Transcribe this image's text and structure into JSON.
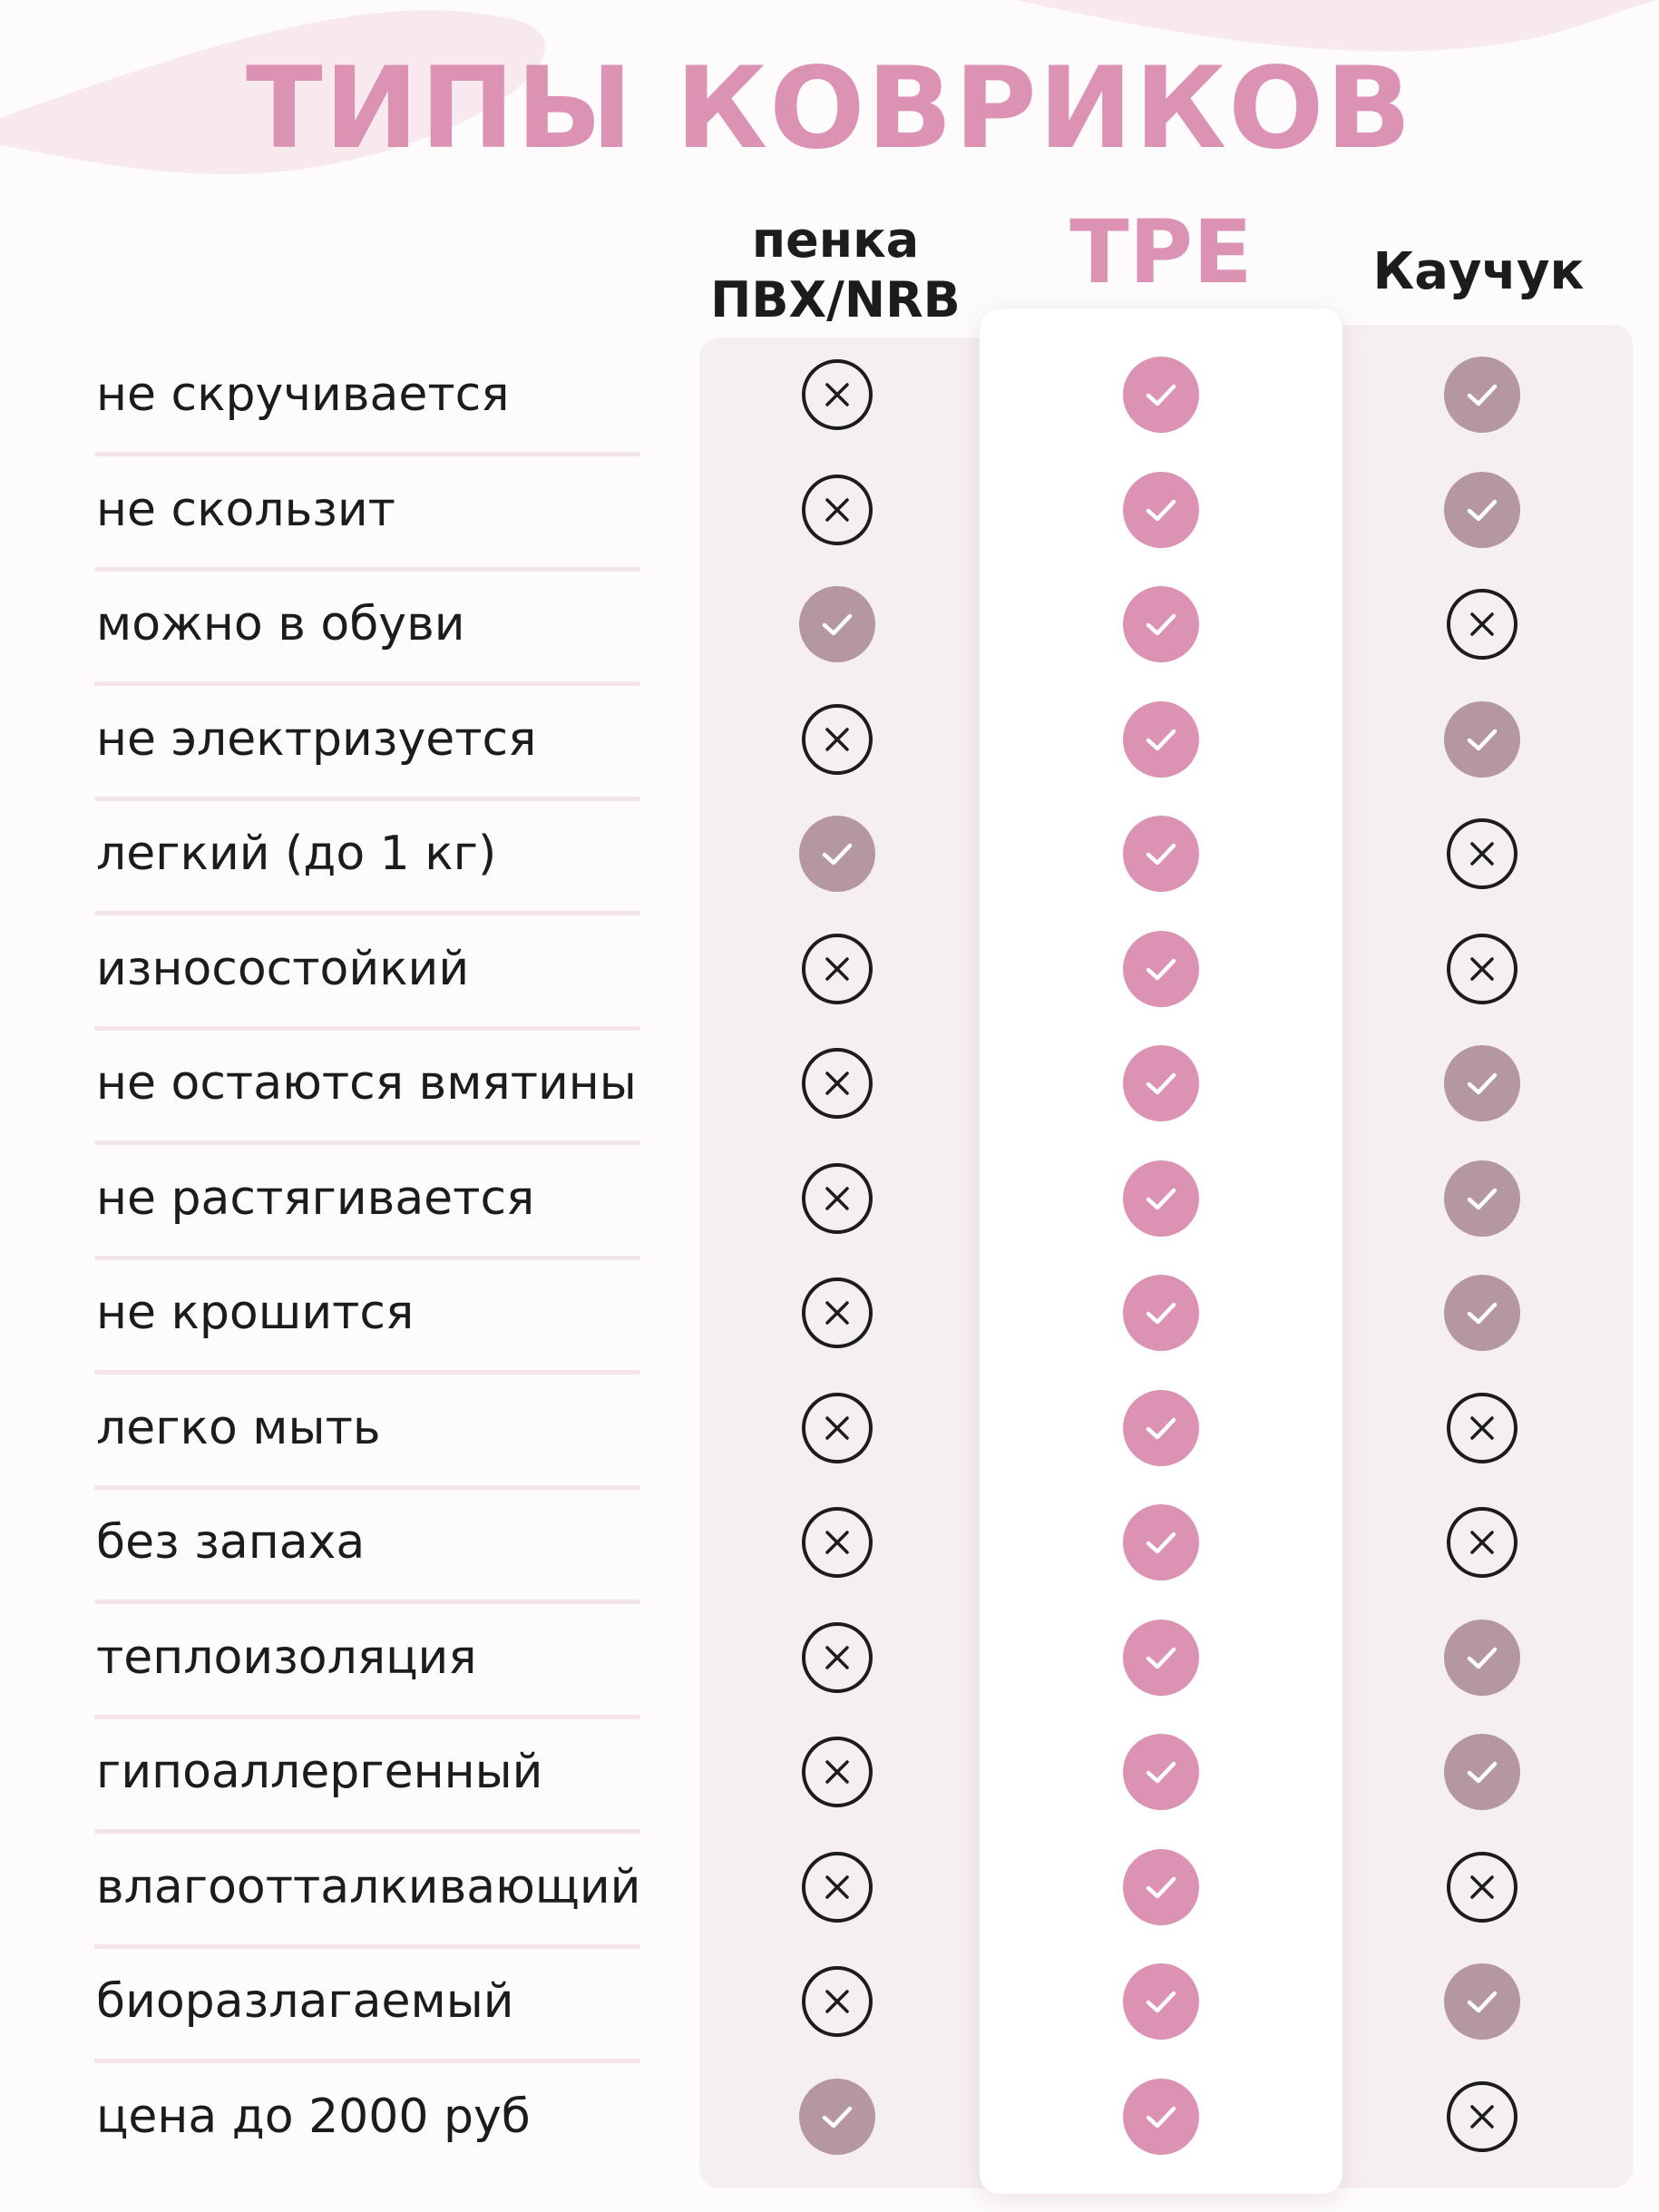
{
  "title": "ТИПЫ КОВРИКОВ",
  "columns": [
    {
      "key": "pvc",
      "label_line1": "пенка",
      "label_line2": "ПВХ/NRB"
    },
    {
      "key": "tpe",
      "label": "TPE"
    },
    {
      "key": "rubber",
      "label": "Каучук"
    }
  ],
  "colors": {
    "title": "#dc93b3",
    "tpe_check": "#dc93b3",
    "other_check": "#b597a3",
    "cross": "#1c1c1c"
  },
  "rows": [
    {
      "label": "не скручивается",
      "pvc": false,
      "tpe": true,
      "rubber": true
    },
    {
      "label": "не скользит",
      "pvc": false,
      "tpe": true,
      "rubber": true
    },
    {
      "label": "можно в обуви",
      "pvc": true,
      "tpe": true,
      "rubber": false
    },
    {
      "label": "не электризуется",
      "pvc": false,
      "tpe": true,
      "rubber": true
    },
    {
      "label": "легкий (до 1 кг)",
      "pvc": true,
      "tpe": true,
      "rubber": false
    },
    {
      "label": "износостойкий",
      "pvc": false,
      "tpe": true,
      "rubber": false
    },
    {
      "label": "не остаются вмятины",
      "pvc": false,
      "tpe": true,
      "rubber": true
    },
    {
      "label": "не растягивается",
      "pvc": false,
      "tpe": true,
      "rubber": true
    },
    {
      "label": "не крошится",
      "pvc": false,
      "tpe": true,
      "rubber": true
    },
    {
      "label": "легко мыть",
      "pvc": false,
      "tpe": true,
      "rubber": false
    },
    {
      "label": "без запаха",
      "pvc": false,
      "tpe": true,
      "rubber": false
    },
    {
      "label": "теплоизоляция",
      "pvc": false,
      "tpe": true,
      "rubber": true
    },
    {
      "label": "гипоаллергенный",
      "pvc": false,
      "tpe": true,
      "rubber": true
    },
    {
      "label": "влагоотталкивающий",
      "pvc": false,
      "tpe": true,
      "rubber": false
    },
    {
      "label": "биоразлагаемый",
      "pvc": false,
      "tpe": true,
      "rubber": true
    },
    {
      "label": "цена до 2000 руб",
      "pvc": true,
      "tpe": true,
      "rubber": false
    }
  ]
}
